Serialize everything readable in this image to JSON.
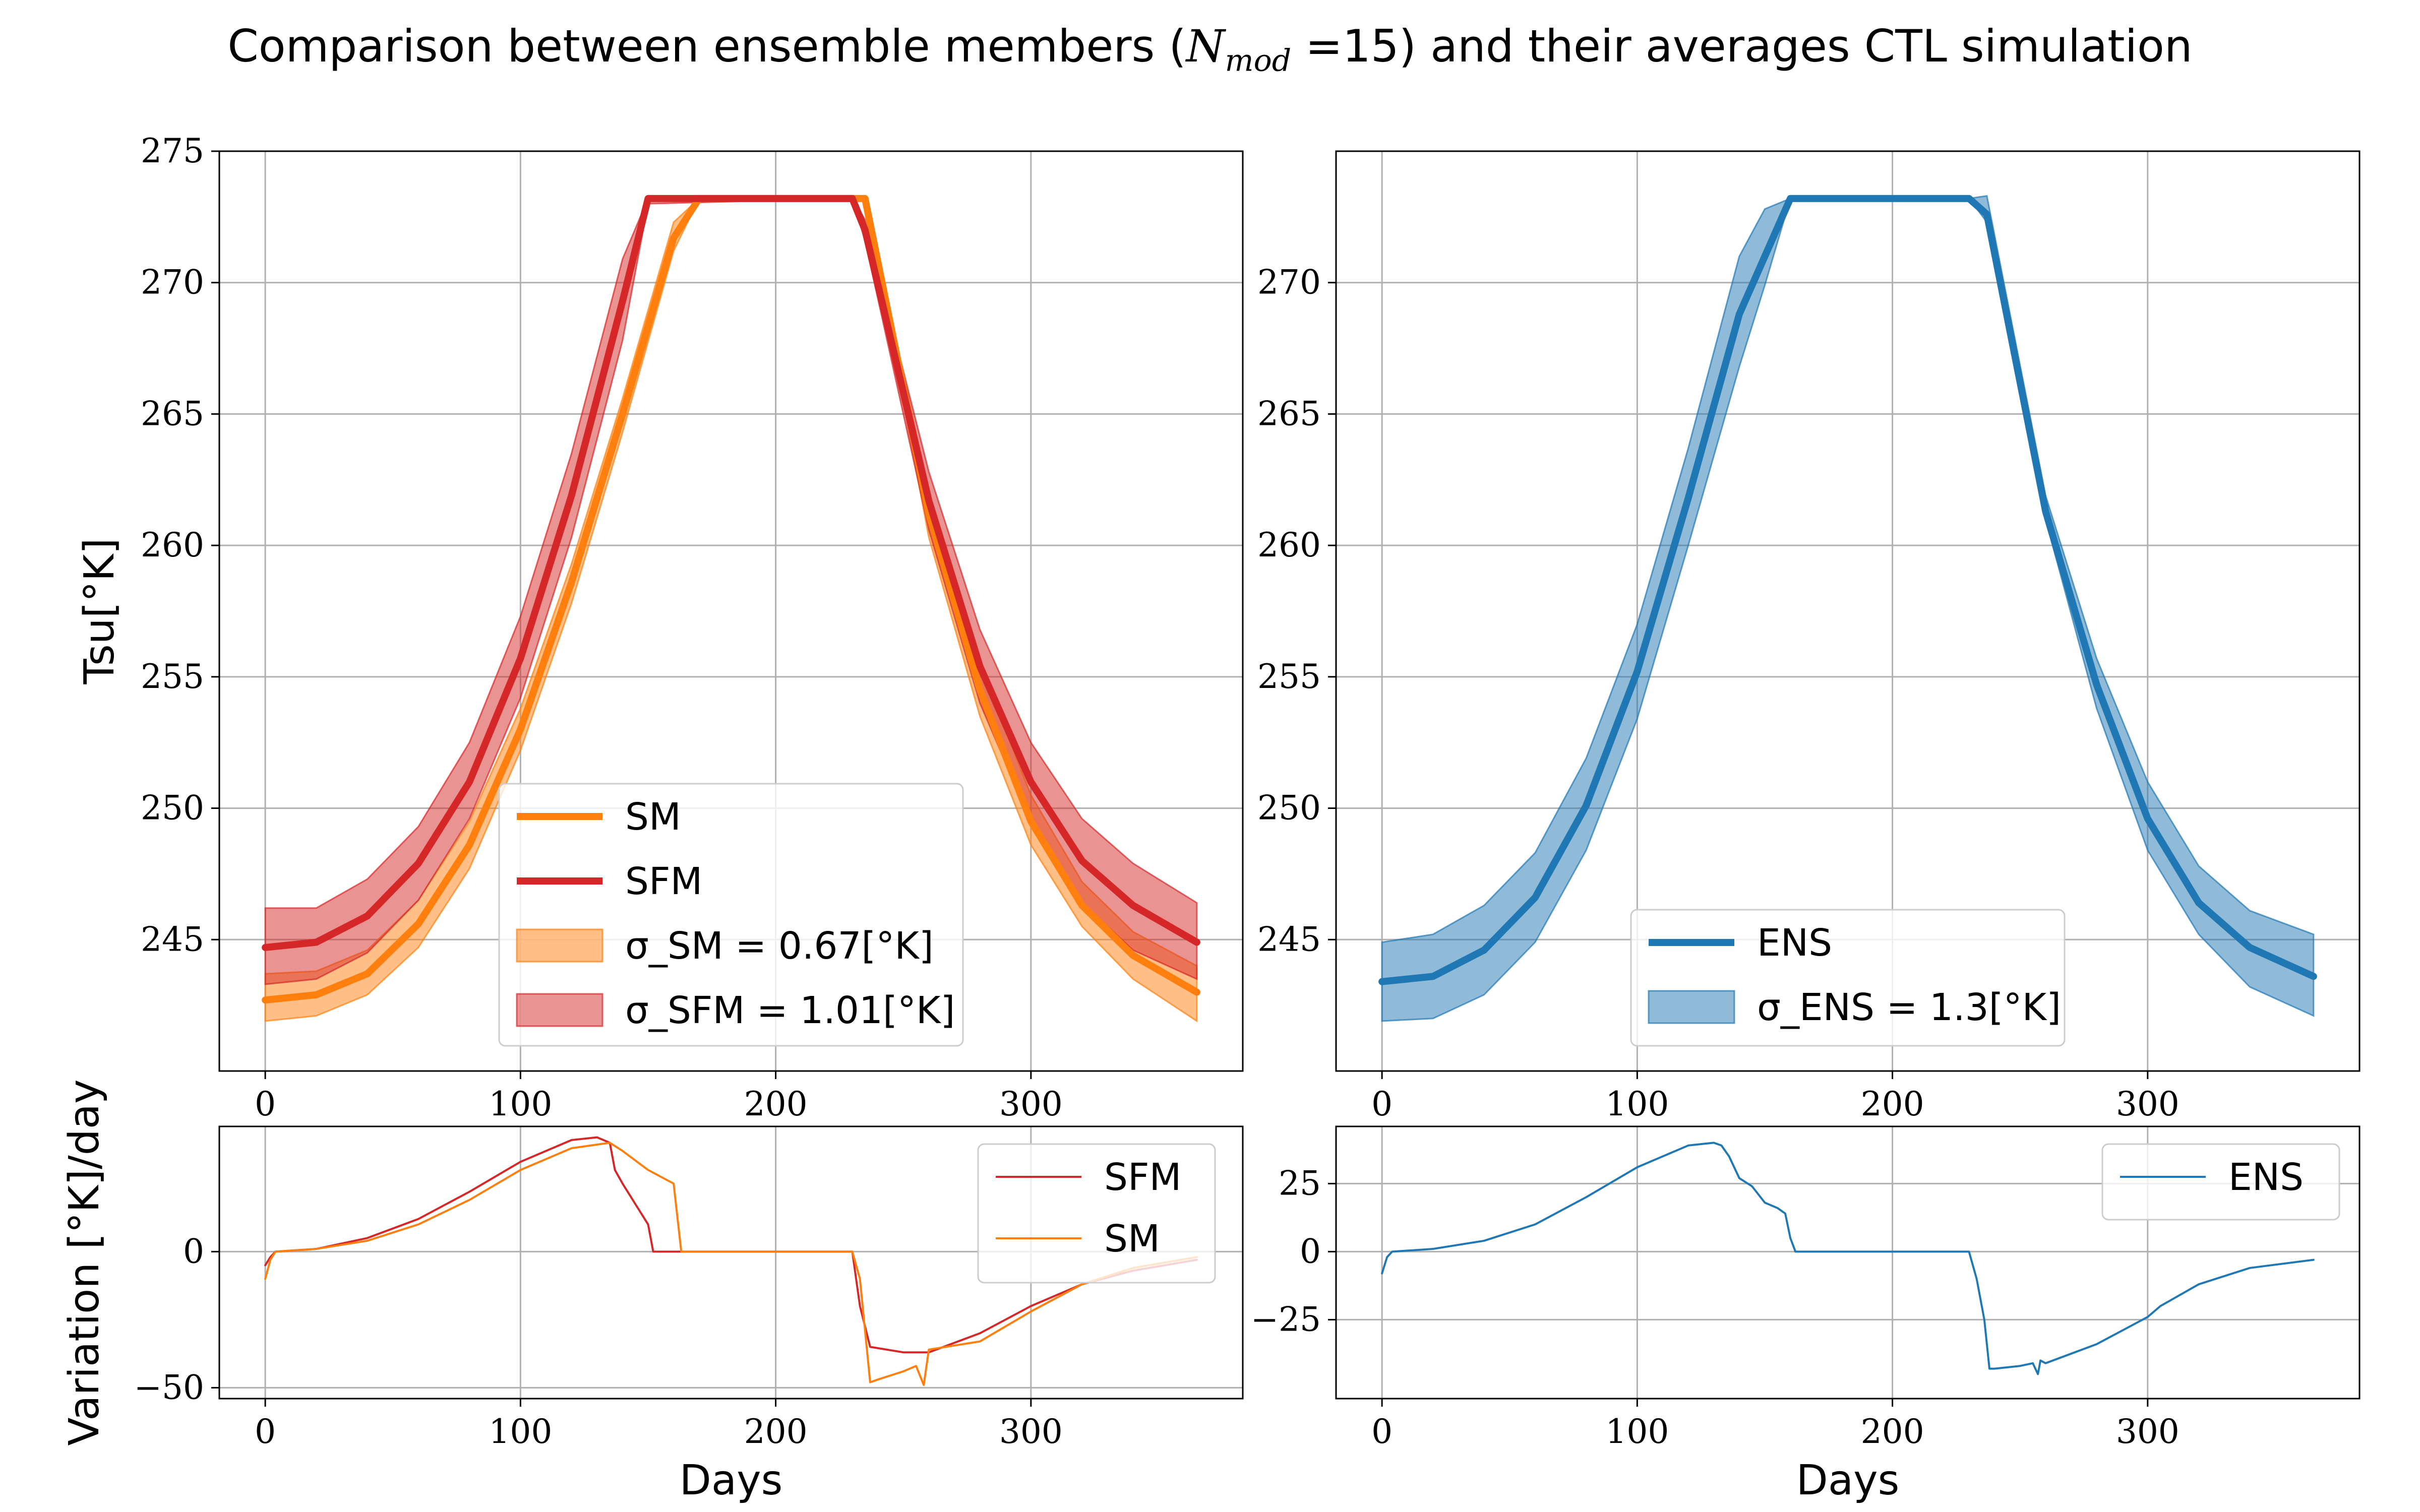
{
  "figure": {
    "title": "Comparison between ensemble members (N_mod =15) and their averages CTL simulation"
  },
  "chart_data": [
    {
      "panel": "top-left",
      "type": "line",
      "ylabel": "Tsu[°K]",
      "xlim": [
        -18,
        383
      ],
      "ylim": [
        240,
        275
      ],
      "xticks": [
        0,
        100,
        200,
        300
      ],
      "yticks": [
        245,
        250,
        255,
        260,
        265,
        270,
        275
      ],
      "grid": true,
      "legend_location": "center-bottom",
      "series": [
        {
          "name": "SM",
          "color": "#ff7f0e",
          "linewidth": 14,
          "x": [
            0,
            20,
            40,
            60,
            80,
            100,
            120,
            140,
            160,
            170,
            230,
            235,
            260,
            280,
            300,
            320,
            340,
            365
          ],
          "y": [
            242.7,
            242.9,
            243.7,
            245.6,
            248.6,
            253.0,
            258.6,
            265.0,
            271.7,
            273.2,
            273.2,
            273.2,
            261.2,
            254.5,
            249.5,
            246.3,
            244.4,
            243.0
          ]
        },
        {
          "name": "SFM",
          "color": "#d62728",
          "linewidth": 14,
          "x": [
            0,
            20,
            40,
            60,
            80,
            100,
            120,
            140,
            150,
            230,
            235,
            260,
            280,
            300,
            320,
            340,
            365
          ],
          "y": [
            244.7,
            244.9,
            245.9,
            247.9,
            251.0,
            255.7,
            261.9,
            269.3,
            273.2,
            273.2,
            272.0,
            261.7,
            255.4,
            251.0,
            248.0,
            246.3,
            244.9
          ]
        }
      ],
      "bands": [
        {
          "name": "σ_SM = 0.67[°K]",
          "color": "#ff7f0e",
          "opacity": 0.5,
          "x": [
            0,
            20,
            40,
            60,
            80,
            100,
            120,
            140,
            160,
            170,
            230,
            235,
            260,
            280,
            300,
            320,
            340,
            365
          ],
          "lower": [
            241.9,
            242.1,
            242.9,
            244.7,
            247.7,
            252.2,
            257.8,
            264.3,
            271.2,
            273.2,
            273.2,
            273.2,
            260.3,
            253.5,
            248.6,
            245.5,
            243.5,
            241.9
          ],
          "upper": [
            243.7,
            243.8,
            244.6,
            246.5,
            249.5,
            253.8,
            259.3,
            265.6,
            272.3,
            273.2,
            273.2,
            273.3,
            262.0,
            255.5,
            250.5,
            247.2,
            245.3,
            244.0
          ]
        },
        {
          "name": "σ_SFM = 1.01[°K]",
          "color": "#d62728",
          "opacity": 0.5,
          "x": [
            0,
            20,
            40,
            60,
            80,
            100,
            120,
            140,
            150,
            230,
            235,
            260,
            280,
            300,
            320,
            340,
            365
          ],
          "lower": [
            243.3,
            243.5,
            244.5,
            246.5,
            249.6,
            254.2,
            260.3,
            267.8,
            273.0,
            273.2,
            271.6,
            260.6,
            254.0,
            249.5,
            246.4,
            244.6,
            243.5
          ],
          "upper": [
            246.2,
            246.2,
            247.3,
            249.3,
            252.5,
            257.3,
            263.5,
            270.9,
            273.2,
            273.2,
            272.4,
            262.8,
            256.8,
            252.5,
            249.6,
            247.9,
            246.4
          ]
        }
      ]
    },
    {
      "panel": "top-right",
      "type": "line",
      "ylabel": "",
      "xlim": [
        -18,
        383
      ],
      "ylim": [
        240,
        275
      ],
      "xticks": [
        0,
        100,
        200,
        300
      ],
      "yticks": [
        245,
        250,
        255,
        260,
        265,
        270
      ],
      "grid": true,
      "legend_location": "lower-center",
      "series": [
        {
          "name": "ENS",
          "color": "#1f77b4",
          "linewidth": 14,
          "x": [
            0,
            20,
            40,
            60,
            80,
            100,
            120,
            140,
            160,
            230,
            237,
            260,
            280,
            300,
            320,
            340,
            365
          ],
          "y": [
            243.4,
            243.6,
            244.6,
            246.6,
            250.1,
            255.2,
            261.8,
            268.8,
            273.2,
            273.2,
            272.6,
            261.3,
            254.7,
            249.6,
            246.4,
            244.7,
            243.6
          ]
        }
      ],
      "bands": [
        {
          "name": "σ_ENS = 1.3[°K]",
          "color": "#1f77b4",
          "opacity": 0.5,
          "x": [
            0,
            20,
            40,
            60,
            80,
            100,
            120,
            140,
            150,
            160,
            230,
            237,
            260,
            280,
            300,
            320,
            340,
            365
          ],
          "lower": [
            241.9,
            242.0,
            242.9,
            244.9,
            248.4,
            253.4,
            260.0,
            266.8,
            269.9,
            273.2,
            273.2,
            272.3,
            261.0,
            253.8,
            248.4,
            245.2,
            243.2,
            242.1
          ],
          "upper": [
            244.9,
            245.2,
            246.3,
            248.3,
            251.9,
            257.0,
            263.7,
            271.0,
            272.8,
            273.2,
            273.2,
            273.3,
            261.9,
            255.7,
            251.0,
            247.8,
            246.1,
            245.2
          ]
        }
      ]
    },
    {
      "panel": "bottom-left",
      "type": "line",
      "ylabel": "Variation [°K]/day",
      "xlabel": "Days",
      "xlim": [
        -18,
        383
      ],
      "ylim": [
        -54,
        46
      ],
      "xticks": [
        0,
        100,
        200,
        300
      ],
      "yticks": [
        -50,
        0
      ],
      "grid": true,
      "legend_location": "upper-right",
      "series": [
        {
          "name": "SFM",
          "color": "#d62728",
          "linewidth": 4,
          "x": [
            0,
            2,
            4,
            20,
            40,
            60,
            80,
            100,
            120,
            130,
            135,
            137,
            140,
            150,
            152,
            200,
            230,
            233,
            237,
            250,
            255,
            260,
            280,
            300,
            320,
            340,
            365
          ],
          "y": [
            -5,
            -2,
            0,
            1,
            5,
            12,
            22,
            33,
            41,
            42,
            40,
            30,
            25,
            10,
            0,
            0,
            0,
            -20,
            -35,
            -37,
            -37,
            -37,
            -30,
            -20,
            -12,
            -7,
            -3
          ]
        },
        {
          "name": "SM",
          "color": "#ff7f0e",
          "linewidth": 4,
          "x": [
            0,
            2,
            4,
            20,
            40,
            60,
            80,
            100,
            120,
            135,
            140,
            150,
            160,
            163,
            170,
            200,
            230,
            233,
            237,
            240,
            250,
            255,
            258,
            260,
            280,
            300,
            320,
            340,
            365
          ],
          "y": [
            -10,
            -3,
            0,
            1,
            4,
            10,
            19,
            30,
            38,
            40,
            37,
            30,
            25,
            0,
            0,
            0,
            0,
            -10,
            -48,
            -47,
            -44,
            -42,
            -49,
            -36,
            -33,
            -22,
            -12,
            -6,
            -2
          ]
        }
      ]
    },
    {
      "panel": "bottom-right",
      "type": "line",
      "ylabel": "",
      "xlabel": "Days",
      "xlim": [
        -18,
        383
      ],
      "ylim": [
        -54,
        46
      ],
      "xticks": [
        0,
        100,
        200,
        300
      ],
      "yticks": [
        -25,
        0,
        25
      ],
      "grid": true,
      "legend_location": "upper-right",
      "series": [
        {
          "name": "ENS",
          "color": "#1f77b4",
          "linewidth": 4,
          "x": [
            0,
            2,
            4,
            20,
            40,
            60,
            80,
            100,
            120,
            130,
            133,
            136,
            140,
            145,
            150,
            155,
            158,
            160,
            162,
            165,
            200,
            230,
            233,
            236,
            238,
            240,
            250,
            255,
            257,
            258,
            260,
            280,
            300,
            305,
            320,
            340,
            365
          ],
          "y": [
            -8,
            -2,
            0,
            1,
            4,
            10,
            20,
            31,
            39,
            40,
            39,
            35,
            27,
            24,
            18,
            16,
            14,
            5,
            0,
            0,
            0,
            0,
            -10,
            -25,
            -43,
            -43,
            -42,
            -41,
            -45,
            -40,
            -41,
            -34,
            -24,
            -20,
            -12,
            -6,
            -3
          ]
        }
      ]
    }
  ]
}
